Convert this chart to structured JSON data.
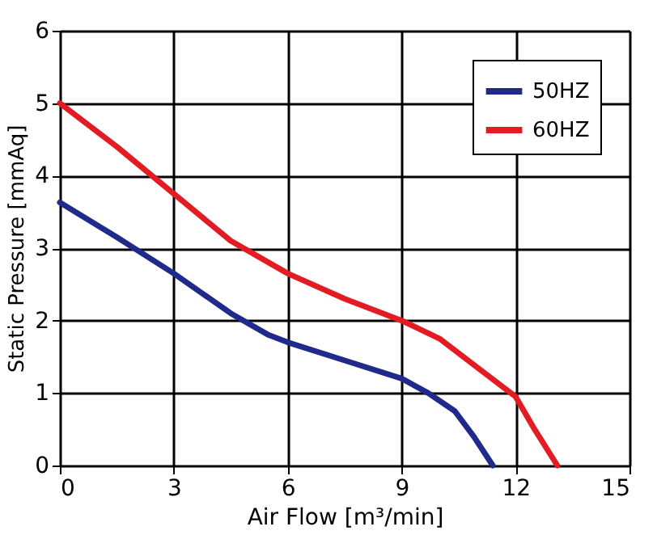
{
  "chart_data": {
    "type": "line",
    "xlabel": "Air Flow [m³/min]",
    "ylabel": "Static Pressure [mmAq]",
    "xlim": [
      0,
      15
    ],
    "ylim": [
      0,
      6
    ],
    "xticks": [
      0,
      3,
      6,
      9,
      12,
      15
    ],
    "yticks": [
      0,
      1,
      2,
      3,
      4,
      5,
      6
    ],
    "grid": true,
    "legend": "top right",
    "marker": "none",
    "line_style": "solid",
    "series": [
      {
        "name": "50HZ",
        "color": "#1f2a8a",
        "x": [
          0,
          1.5,
          3,
          4.5,
          5.5,
          6,
          7.5,
          9,
          9.7,
          10.4,
          10.9,
          11.4
        ],
        "values": [
          3.63,
          3.15,
          2.65,
          2.1,
          1.8,
          1.7,
          1.45,
          1.2,
          1.0,
          0.75,
          0.4,
          0
        ]
      },
      {
        "name": "60HZ",
        "color": "#e31b23",
        "x": [
          0,
          1.5,
          3,
          4.5,
          6,
          7.5,
          9,
          10,
          11,
          12,
          12.5,
          13.1
        ],
        "values": [
          5,
          4.4,
          3.75,
          3.1,
          2.65,
          2.3,
          2.0,
          1.75,
          1.35,
          0.95,
          0.5,
          0
        ]
      }
    ]
  }
}
